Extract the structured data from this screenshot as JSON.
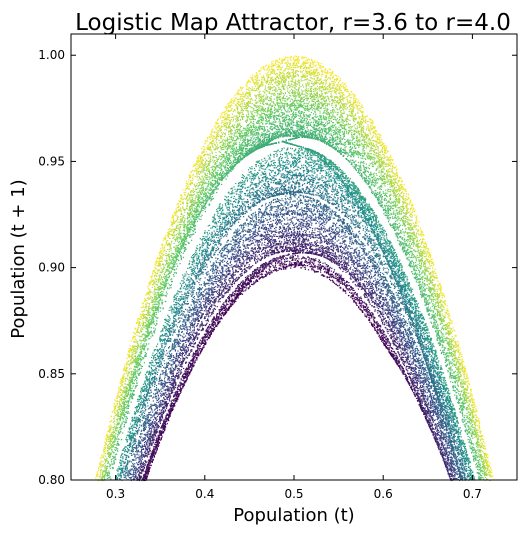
{
  "chart_data": {
    "type": "scatter",
    "title": "Logistic Map Attractor, r=3.6 to r=4.0",
    "xlabel": "Population (t)",
    "ylabel": "Population (t + 1)",
    "xlim": [
      0.25,
      0.75
    ],
    "ylim": [
      0.8,
      1.01
    ],
    "r_range": [
      3.6,
      4.0
    ],
    "x_ticks": [
      {
        "value": 0.3,
        "label": "0.3"
      },
      {
        "value": 0.4,
        "label": "0.4"
      },
      {
        "value": 0.5,
        "label": "0.5"
      },
      {
        "value": 0.6,
        "label": "0.6"
      },
      {
        "value": 0.7,
        "label": "0.7"
      }
    ],
    "y_ticks": [
      {
        "value": 0.8,
        "label": "0.80"
      },
      {
        "value": 0.85,
        "label": "0.85"
      },
      {
        "value": 0.9,
        "label": "0.90"
      },
      {
        "value": 0.95,
        "label": "0.95"
      },
      {
        "value": 1.0,
        "label": "1.00"
      }
    ],
    "colormap": [
      "#440154",
      "#3b528b",
      "#21918c",
      "#5ec962",
      "#fde725"
    ],
    "grid": false,
    "legend": "none"
  }
}
